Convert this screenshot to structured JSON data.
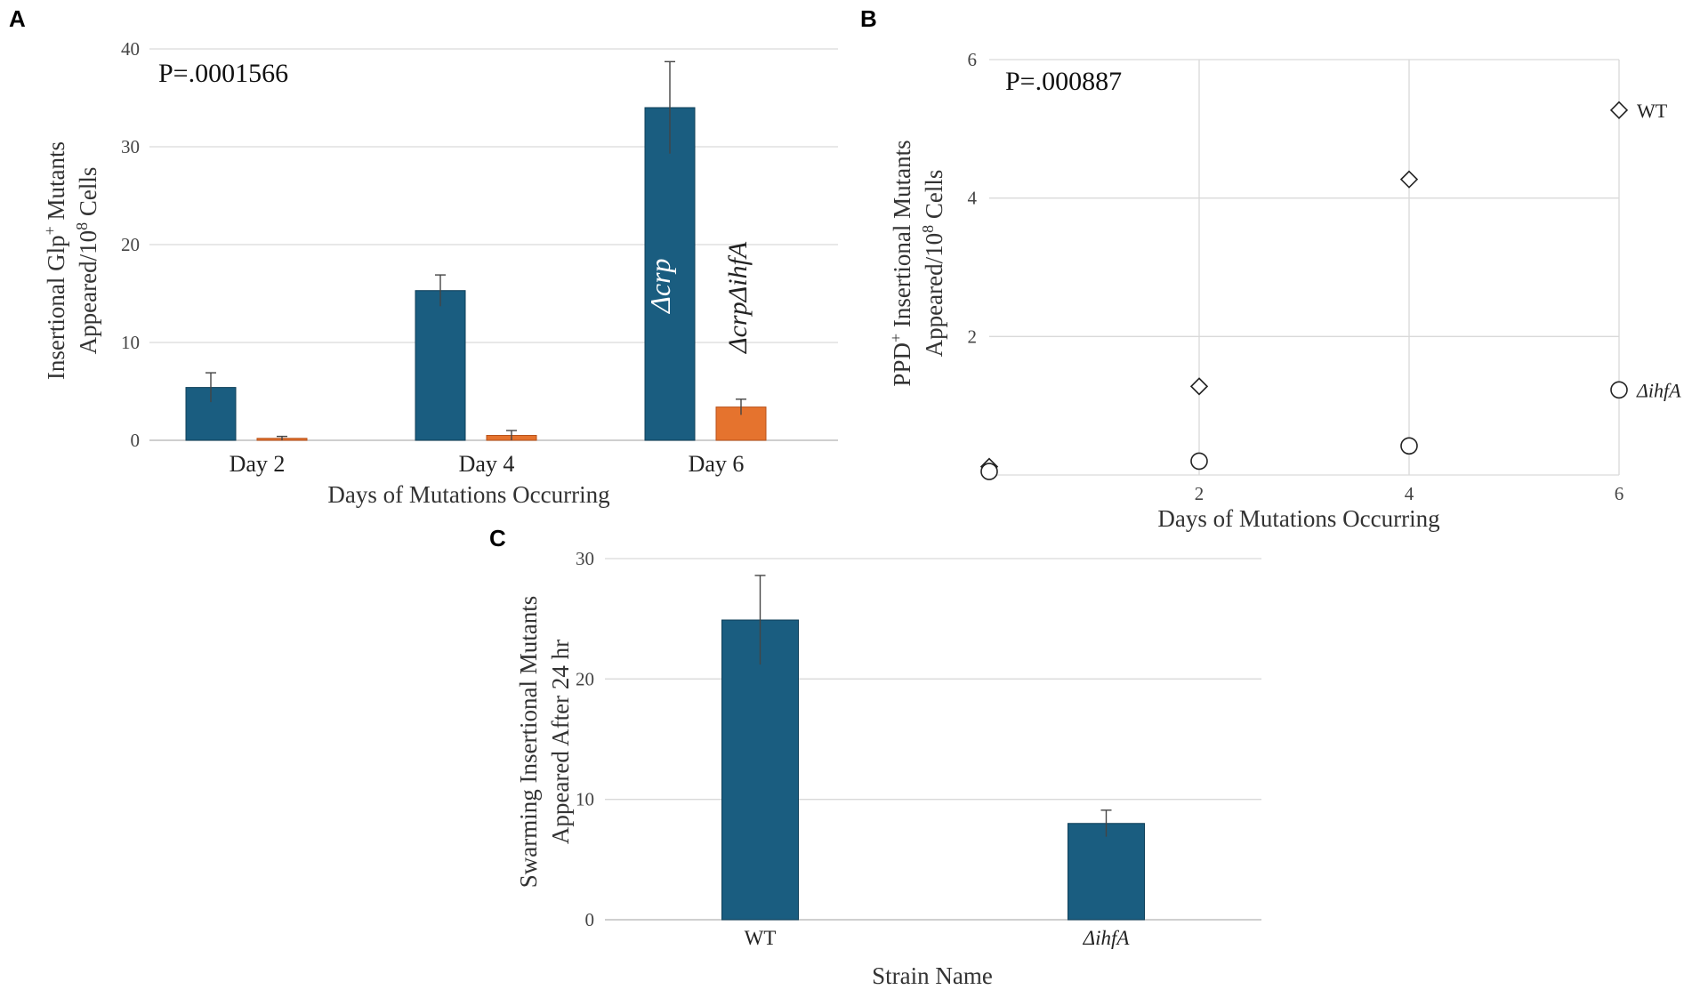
{
  "panels": {
    "a": {
      "letter": "A"
    },
    "b": {
      "letter": "B"
    },
    "c": {
      "letter": "C"
    }
  },
  "colors": {
    "blue": "#1a5d80",
    "orange": "#e5732e",
    "gridline": "#d9d9d9"
  },
  "chart_data": [
    {
      "id": "A",
      "type": "bar",
      "title": "",
      "annotation": "P=.0001566",
      "xlabel": "Days of Mutations Occurring",
      "ylabel_line1": "Insertional Glp+ Mutants",
      "ylabel_line2": "Appeared/108 Cells",
      "ylim": [
        0,
        40
      ],
      "yticks": [
        0,
        10,
        20,
        30,
        40
      ],
      "categories": [
        "Day 2",
        "Day 4",
        "Day 6"
      ],
      "series": [
        {
          "name": "Δcrp",
          "color": "#1a5d80",
          "values": [
            5.4,
            15.3,
            34.0
          ],
          "errors": [
            1.5,
            1.6,
            4.7
          ]
        },
        {
          "name": "ΔcrpΔihfA",
          "color": "#e5732e",
          "values": [
            0.2,
            0.5,
            3.4
          ],
          "errors": [
            0.2,
            0.5,
            0.8
          ]
        }
      ],
      "bar_labels": [
        "Δcrp",
        "ΔcrpΔihfA"
      ]
    },
    {
      "id": "B",
      "type": "scatter",
      "annotation": "P=.000887",
      "xlabel": "Days of Mutations Occurring",
      "ylabel_line1": "PPD+ Insertional Mutants",
      "ylabel_line2": "Appeared/108 Cells",
      "xlim": [
        0,
        6
      ],
      "ylim": [
        0,
        6
      ],
      "xticks": [
        2,
        4,
        6
      ],
      "yticks": [
        2,
        4,
        6
      ],
      "series": [
        {
          "name": "WT",
          "marker": "diamond",
          "points": [
            [
              0,
              0.12
            ],
            [
              2,
              1.28
            ],
            [
              4,
              4.27
            ],
            [
              6,
              5.27
            ]
          ]
        },
        {
          "name": "ΔihfA",
          "marker": "circle",
          "points": [
            [
              0,
              0.05
            ],
            [
              2,
              0.2
            ],
            [
              4,
              0.42
            ],
            [
              6,
              1.23
            ]
          ]
        }
      ]
    },
    {
      "id": "C",
      "type": "bar",
      "xlabel": "Strain Name",
      "ylabel_line1": "Swarming Insertional Mutants",
      "ylabel_line2": "Appeared After 24 hr",
      "ylim": [
        0,
        30
      ],
      "yticks": [
        0,
        10,
        20,
        30
      ],
      "categories": [
        "WT",
        "ΔihfA"
      ],
      "values": [
        24.9,
        8.0
      ],
      "errors": [
        3.7,
        1.1
      ],
      "color": "#1a5d80"
    }
  ]
}
